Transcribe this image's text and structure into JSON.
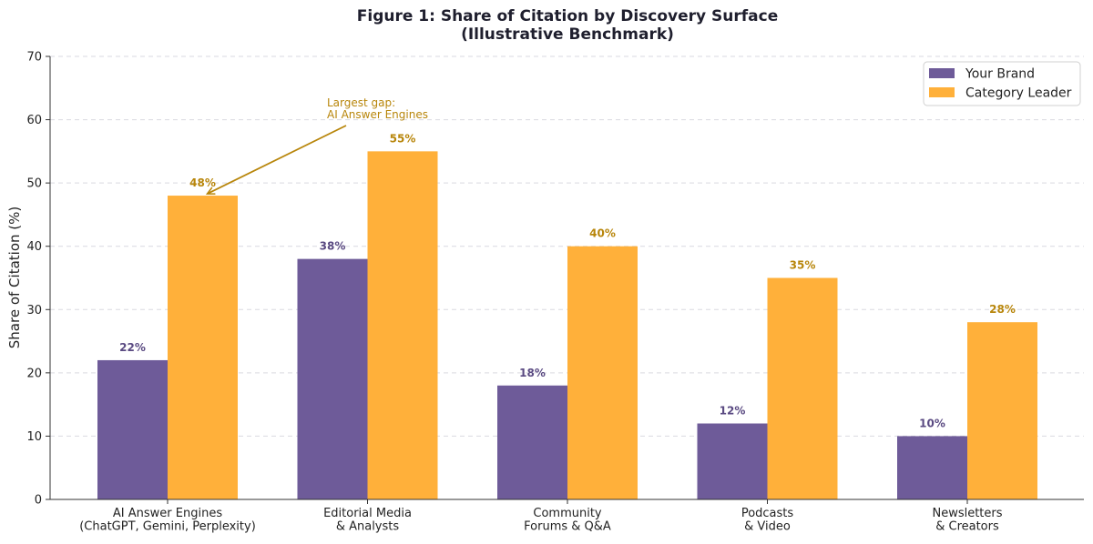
{
  "colors": {
    "your_brand": "#6e5b99",
    "category_leader": "#ffb03a",
    "brand_label": "#5a4a82",
    "leader_label": "#b8860b",
    "annotation": "#b8860b"
  },
  "chart_data": {
    "type": "bar",
    "title_line1": "Figure 1: Share of Citation by Discovery Surface",
    "title_line2": "(Illustrative Benchmark)",
    "xlabel": "",
    "ylabel": "Share of Citation (%)",
    "ylim": [
      0,
      70
    ],
    "yticks": [
      0,
      10,
      20,
      30,
      40,
      50,
      60,
      70
    ],
    "grid": true,
    "legend_position": "top-right",
    "categories": [
      [
        "AI Answer Engines",
        "(ChatGPT, Gemini, Perplexity)"
      ],
      [
        "Editorial Media",
        "& Analysts"
      ],
      [
        "Community",
        "Forums & Q&A"
      ],
      [
        "Podcasts",
        "& Video"
      ],
      [
        "Newsletters",
        "& Creators"
      ]
    ],
    "series": [
      {
        "name": "Your Brand",
        "values": [
          22,
          38,
          18,
          12,
          10
        ],
        "labels": [
          "22%",
          "38%",
          "18%",
          "12%",
          "10%"
        ]
      },
      {
        "name": "Category Leader",
        "values": [
          48,
          55,
          40,
          35,
          28
        ],
        "labels": [
          "48%",
          "55%",
          "40%",
          "35%",
          "28%"
        ]
      }
    ],
    "annotation": {
      "lines": [
        "Largest gap:",
        "AI Answer Engines"
      ],
      "target_category": 0,
      "target_series": 1
    }
  }
}
